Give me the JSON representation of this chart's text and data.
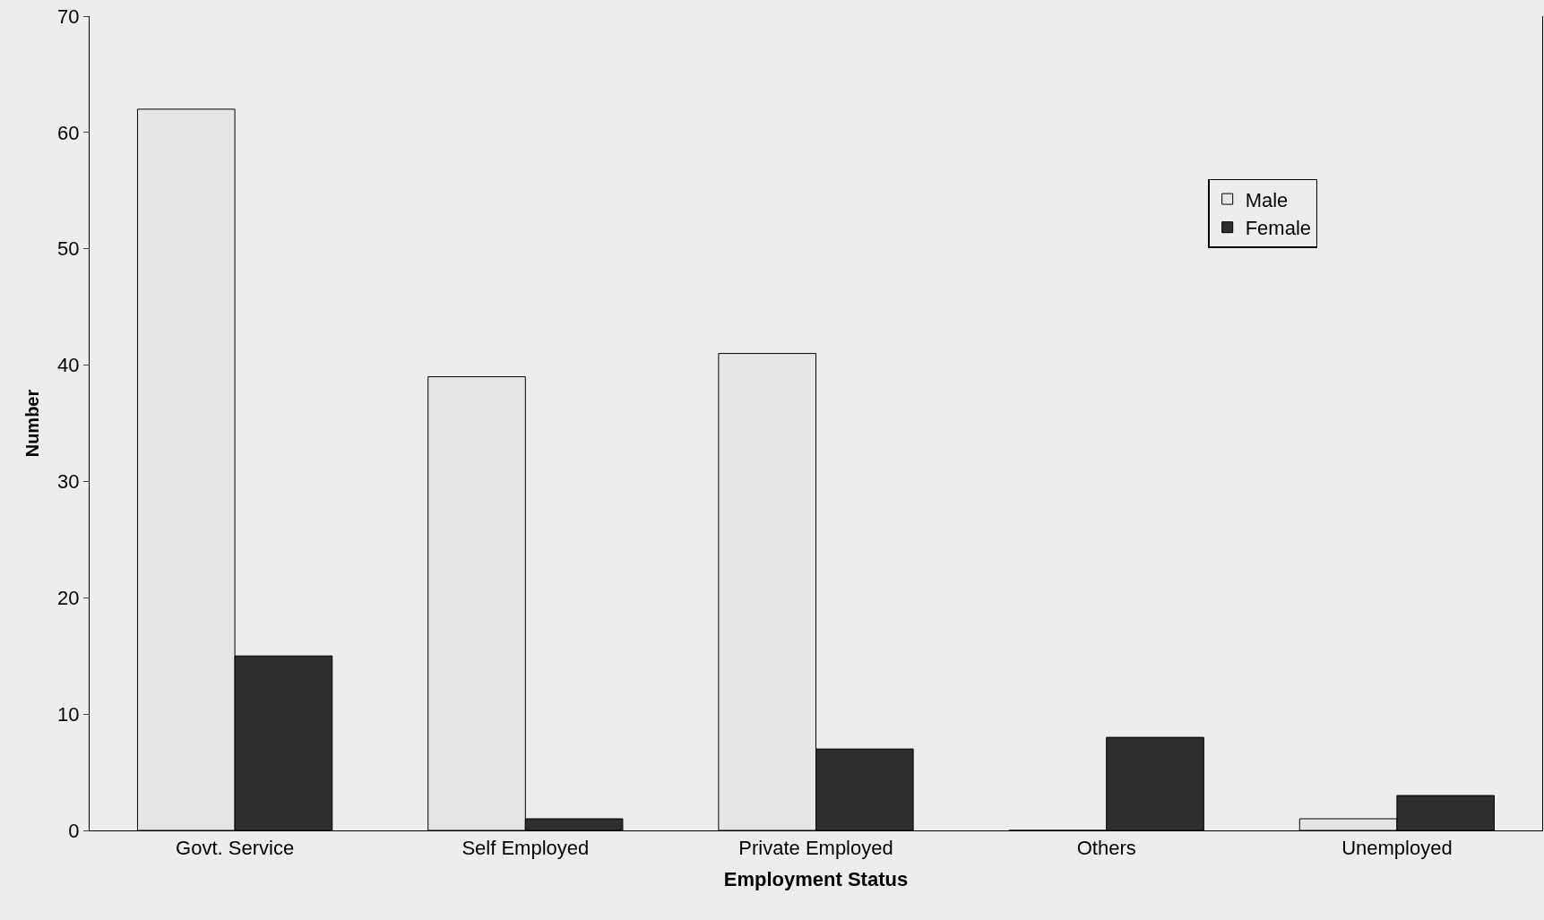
{
  "chart_data": {
    "type": "bar",
    "xlabel": "Employment Status",
    "ylabel": "Number",
    "categories": [
      "Govt. Service",
      "Self Employed",
      "Private Employed",
      "Others",
      "Unemployed"
    ],
    "series": [
      {
        "name": "Male",
        "color": "#e6e6e6",
        "values": [
          62,
          39,
          41,
          0,
          1
        ]
      },
      {
        "name": "Female",
        "color": "#2e2e2e",
        "values": [
          15,
          1,
          7,
          8,
          3
        ]
      }
    ],
    "ylim": [
      0,
      70
    ],
    "yticks": [
      0,
      10,
      20,
      30,
      40,
      50,
      60,
      70
    ],
    "grid": false,
    "legend": "top right"
  }
}
